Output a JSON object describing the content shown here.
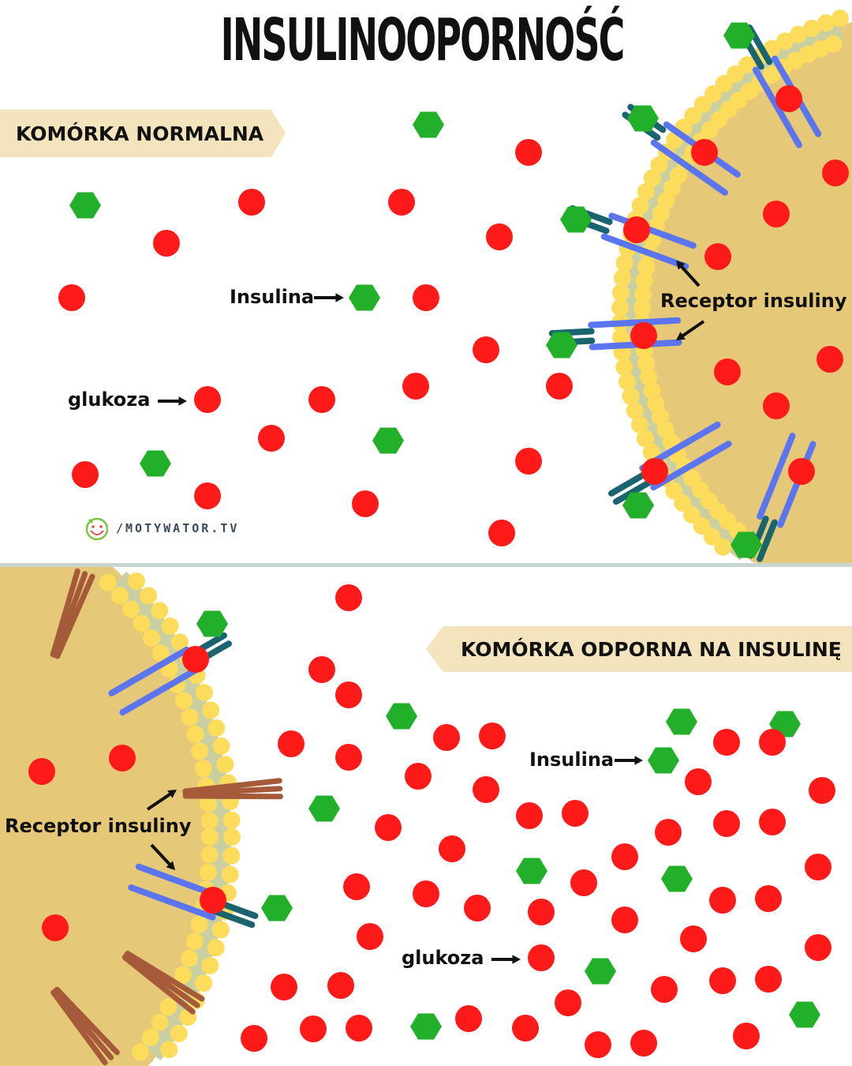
{
  "title": "INSULINOOPORNOŚĆ",
  "normal_panel": {
    "banner": "KOMÓRKA NORMALNA",
    "insulin_label": "Insulina",
    "glucose_label": "glukoza",
    "receptor_label": "Receptor insuliny"
  },
  "resistant_panel": {
    "banner": "KOMÓRKA ODPORNA NA INSULINĘ",
    "insulin_label": "Insulina",
    "glucose_label": "glukoza",
    "receptor_label": "Receptor insuliny"
  },
  "logo": {
    "text": "/MOTYWATOR.TV"
  },
  "colors": {
    "glucose": "#ff1a1a",
    "insulin": "#22b02a",
    "cell": "#e5c878",
    "membrane_bead": "#fddc5c",
    "membrane_core": "#c9cfa0",
    "receptor_outer": "#5b74f0",
    "receptor_inner": "#1a6470",
    "resistant_receptor": "#a55a3a",
    "banner": "#f3e4bd",
    "divider": "#c8d4cf"
  }
}
